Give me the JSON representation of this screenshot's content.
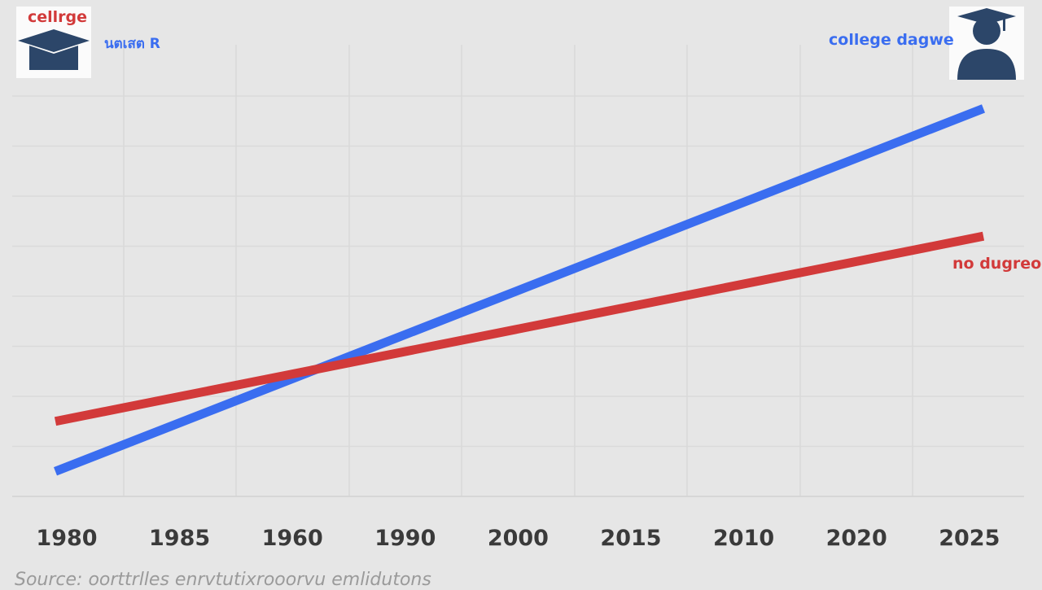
{
  "legend": {
    "left_caption": "cellrge",
    "left_label": "นตเสต R",
    "right_label": "college dagwe",
    "no_degree_label": "no dugreo"
  },
  "source": "Source: oorttrlles enrvtutixrooorvu emlidutons",
  "icons": {
    "left": "graduation-cap-icon",
    "right": "graduate-person-icon"
  },
  "colors": {
    "college": "#3a6df0",
    "no_degree": "#d23a3a",
    "icon": "#2c4669",
    "background": "#e6e6e6"
  },
  "chart_data": {
    "type": "line",
    "categories": [
      "1980",
      "1985",
      "1960",
      "1990",
      "2000",
      "2015",
      "2010",
      "2020",
      "2025"
    ],
    "x": [
      0,
      8.6
    ],
    "series": [
      {
        "name": "college dagwe",
        "color": "#3a6df0",
        "values": [
          0.5,
          7.75
        ]
      },
      {
        "name": "no dugreo",
        "color": "#d23a3a",
        "values": [
          1.5,
          5.2
        ]
      }
    ],
    "ylim": [
      0,
      8
    ],
    "grid": true,
    "xlabel": "",
    "ylabel": ""
  }
}
